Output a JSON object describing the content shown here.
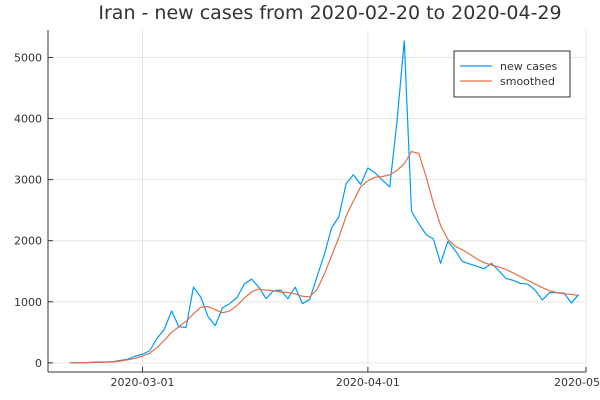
{
  "chart_data": {
    "type": "line",
    "title": "Iran - new cases from 2020-02-20 to 2020-04-29",
    "xlabel": "",
    "ylabel": "",
    "x_range": [
      "2020-02-17",
      "2020-05-01"
    ],
    "ylim": [
      -150,
      5450
    ],
    "x_ticks": [
      "2020-03-01",
      "2020-04-01",
      "2020-05-01"
    ],
    "x_tick_labels": [
      "2020-03-01",
      "2020-04-01",
      "2020-05-01"
    ],
    "y_ticks": [
      0,
      1000,
      2000,
      3000,
      4000,
      5000
    ],
    "y_tick_labels": [
      "0",
      "1000",
      "2000",
      "3000",
      "4000",
      "5000"
    ],
    "grid": true,
    "legend_position": "top-right",
    "x_start": "2020-02-20",
    "x_end": "2020-04-29",
    "series": [
      {
        "name": "new cases",
        "color": "#009af9",
        "values": [
          0,
          0,
          0,
          10,
          15,
          15,
          20,
          40,
          60,
          110,
          140,
          200,
          400,
          550,
          850,
          590,
          580,
          1240,
          1080,
          760,
          610,
          900,
          970,
          1070,
          1290,
          1370,
          1240,
          1050,
          1180,
          1190,
          1050,
          1240,
          970,
          1040,
          1410,
          1770,
          2210,
          2390,
          2930,
          3080,
          2920,
          3190,
          3110,
          2990,
          2880,
          3950,
          5270,
          2480,
          2280,
          2100,
          2030,
          1630,
          1990,
          1840,
          1660,
          1620,
          1580,
          1540,
          1630,
          1510,
          1380,
          1350,
          1300,
          1290,
          1190,
          1030,
          1150,
          1150,
          1140,
          980,
          1120
        ]
      },
      {
        "name": "smoothed",
        "color": "#e26f46",
        "values": [
          0,
          0,
          2,
          5,
          8,
          12,
          18,
          30,
          50,
          75,
          110,
          160,
          250,
          370,
          500,
          590,
          680,
          800,
          910,
          920,
          870,
          820,
          850,
          940,
          1060,
          1160,
          1210,
          1190,
          1180,
          1160,
          1150,
          1130,
          1090,
          1080,
          1200,
          1450,
          1750,
          2050,
          2400,
          2650,
          2880,
          2980,
          3040,
          3050,
          3080,
          3150,
          3260,
          3460,
          3430,
          3050,
          2620,
          2250,
          2020,
          1910,
          1850,
          1780,
          1700,
          1640,
          1600,
          1570,
          1530,
          1470,
          1410,
          1350,
          1290,
          1230,
          1180,
          1150,
          1130,
          1120,
          1100
        ]
      }
    ]
  }
}
